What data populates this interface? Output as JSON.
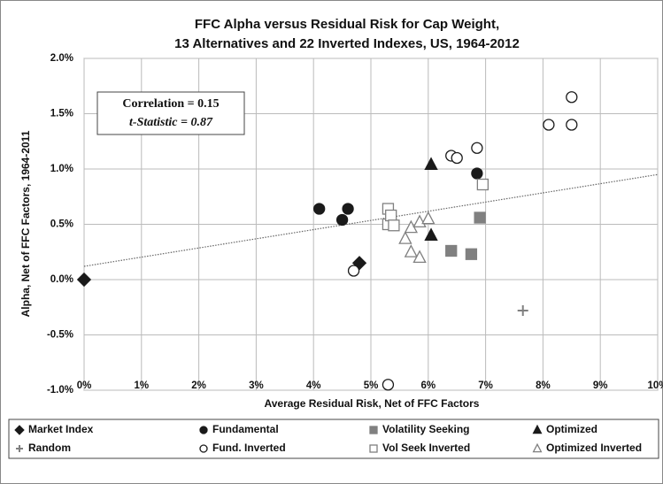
{
  "chart_data": {
    "type": "scatter",
    "title": [
      "FFC Alpha versus Residual Risk for Cap Weight,",
      "13 Alternatives and 22 Inverted Indexes, US, 1964-2012"
    ],
    "xlabel": "Average Residual Risk, Net of FFC Factors",
    "ylabel": "Alpha, Net of FFC Factors, 1964-2011",
    "annotations": [
      "Correlation = 0.15",
      "t-Statistic = 0.87"
    ],
    "xlim": [
      0,
      10
    ],
    "ylim": [
      -1,
      2
    ],
    "xticks": [
      {
        "value": 0,
        "label": "0%"
      },
      {
        "value": 1,
        "label": "1%"
      },
      {
        "value": 2,
        "label": "2%"
      },
      {
        "value": 3,
        "label": "3%"
      },
      {
        "value": 4,
        "label": "4%"
      },
      {
        "value": 5,
        "label": "5%"
      },
      {
        "value": 6,
        "label": "6%"
      },
      {
        "value": 7,
        "label": "7%"
      },
      {
        "value": 8,
        "label": "8%"
      },
      {
        "value": 9,
        "label": "9%"
      },
      {
        "value": 10,
        "label": "10%"
      }
    ],
    "yticks": [
      {
        "value": -1,
        "label": "-1.0%"
      },
      {
        "value": -0.5,
        "label": "-0.5%"
      },
      {
        "value": 0,
        "label": "0.0%"
      },
      {
        "value": 0.5,
        "label": "0.5%"
      },
      {
        "value": 1,
        "label": "1.0%"
      },
      {
        "value": 1.5,
        "label": "1.5%"
      },
      {
        "value": 2,
        "label": "2.0%"
      }
    ],
    "grid": true,
    "legend": "bottom",
    "trendline": {
      "x": [
        0,
        10
      ],
      "y": [
        0.12,
        0.95
      ],
      "color": "#666666"
    },
    "series": [
      {
        "name": "Market Index",
        "marker": "diamond",
        "color": "#1a1a1a",
        "fill": "#1a1a1a",
        "x": [
          0,
          4.8
        ],
        "values": [
          0,
          0.15
        ]
      },
      {
        "name": "Fundamental",
        "marker": "circle",
        "color": "#1a1a1a",
        "fill": "#1a1a1a",
        "x": [
          4.1,
          4.5,
          4.6,
          6.85
        ],
        "values": [
          0.64,
          0.54,
          0.64,
          0.96
        ]
      },
      {
        "name": "Volatility Seeking",
        "marker": "square",
        "color": "#808080",
        "fill": "#808080",
        "x": [
          6.4,
          6.75,
          6.9
        ],
        "values": [
          0.26,
          0.23,
          0.56
        ]
      },
      {
        "name": "Optimized",
        "marker": "triangle",
        "color": "#1a1a1a",
        "fill": "#1a1a1a",
        "x": [
          6.05,
          6.05
        ],
        "values": [
          1.04,
          0.4
        ]
      },
      {
        "name": "Random",
        "marker": "plus",
        "color": "#808080",
        "fill": "none",
        "x": [
          7.65
        ],
        "values": [
          -0.28
        ]
      },
      {
        "name": "Fund. Inverted",
        "marker": "circle",
        "color": "#1a1a1a",
        "fill": "#ffffff",
        "x": [
          4.7,
          5.3,
          6.4,
          6.5,
          6.85,
          8.1,
          8.5,
          8.5
        ],
        "values": [
          0.08,
          -0.95,
          1.12,
          1.1,
          1.19,
          1.4,
          1.4,
          1.65
        ]
      },
      {
        "name": "Vol Seek Inverted",
        "marker": "square",
        "color": "#808080",
        "fill": "#ffffff",
        "x": [
          5.3,
          5.3,
          5.35,
          5.4,
          6.95
        ],
        "values": [
          0.64,
          0.5,
          0.58,
          0.49,
          0.86
        ]
      },
      {
        "name": "Optimized Inverted",
        "marker": "triangle",
        "color": "#808080",
        "fill": "#ffffff",
        "x": [
          5.6,
          5.7,
          5.7,
          5.85,
          5.85,
          6.0
        ],
        "values": [
          0.37,
          0.47,
          0.25,
          0.52,
          0.2,
          0.55
        ]
      }
    ]
  }
}
